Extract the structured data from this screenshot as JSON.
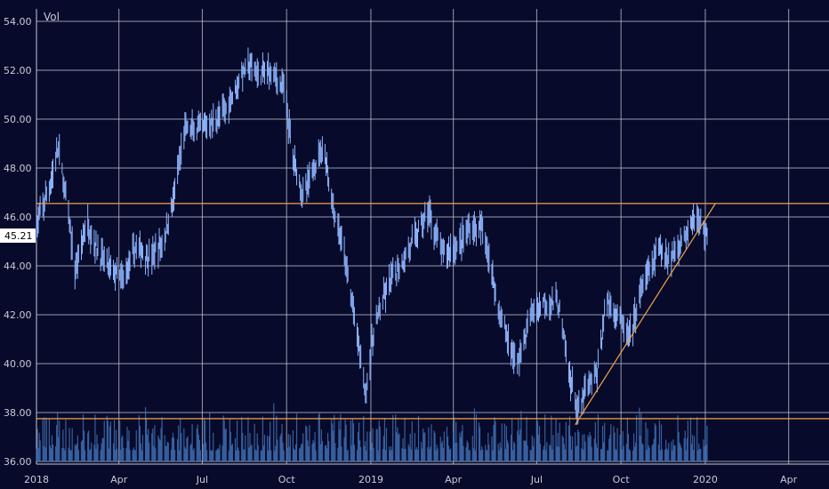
{
  "panel": {
    "indicator_label": "Vol"
  },
  "colors": {
    "background": "#070a2a",
    "grid": "#c7c9d9",
    "price_bar": "#8fb6ff",
    "volume_bar": "#3f6fb1",
    "trendline": "#f0a24a"
  },
  "last_price": {
    "label": "45.21",
    "value": 45.21
  },
  "chart_data": {
    "type": "ohlc",
    "title": "",
    "ylim": [
      36,
      54.5
    ],
    "y_ticks": [
      36,
      38,
      40,
      42,
      44,
      46,
      48,
      50,
      52,
      54
    ],
    "y_tick_labels": [
      "36.00",
      "38.00",
      "40.00",
      "42.00",
      "44.00",
      "46.00",
      "48.00",
      "50.00",
      "52.00",
      "54.00"
    ],
    "x_range": [
      "2018-01-01",
      "2020-05-15"
    ],
    "x_ticks": [
      {
        "date": "2018-01-01",
        "label": "2018"
      },
      {
        "date": "2018-04-01",
        "label": "Apr"
      },
      {
        "date": "2018-07-01",
        "label": "Jul"
      },
      {
        "date": "2018-10-01",
        "label": "Oct"
      },
      {
        "date": "2019-01-01",
        "label": "2019"
      },
      {
        "date": "2019-04-01",
        "label": "Apr"
      },
      {
        "date": "2019-07-01",
        "label": "Jul"
      },
      {
        "date": "2019-10-01",
        "label": "Oct"
      },
      {
        "date": "2020-01-01",
        "label": "2020"
      },
      {
        "date": "2020-04-01",
        "label": "Apr"
      }
    ],
    "grid": true,
    "price_path": [
      [
        "2018-01-01",
        45.6
      ],
      [
        "2018-01-15",
        47.2
      ],
      [
        "2018-01-25",
        48.8
      ],
      [
        "2018-02-05",
        46.0
      ],
      [
        "2018-02-12",
        43.8
      ],
      [
        "2018-02-25",
        45.8
      ],
      [
        "2018-03-10",
        44.5
      ],
      [
        "2018-03-25",
        43.8
      ],
      [
        "2018-04-05",
        43.4
      ],
      [
        "2018-04-20",
        44.8
      ],
      [
        "2018-05-05",
        44.3
      ],
      [
        "2018-05-20",
        45.0
      ],
      [
        "2018-06-01",
        47.0
      ],
      [
        "2018-06-12",
        49.6
      ],
      [
        "2018-06-25",
        49.5
      ],
      [
        "2018-07-10",
        49.8
      ],
      [
        "2018-07-25",
        50.3
      ],
      [
        "2018-08-10",
        51.6
      ],
      [
        "2018-08-20",
        52.2
      ],
      [
        "2018-09-01",
        51.8
      ],
      [
        "2018-09-15",
        52.0
      ],
      [
        "2018-09-28",
        51.2
      ],
      [
        "2018-10-08",
        48.5
      ],
      [
        "2018-10-20",
        46.8
      ],
      [
        "2018-11-01",
        48.2
      ],
      [
        "2018-11-10",
        49.0
      ],
      [
        "2018-11-20",
        46.5
      ],
      [
        "2018-12-01",
        44.8
      ],
      [
        "2018-12-10",
        42.8
      ],
      [
        "2018-12-20",
        40.5
      ],
      [
        "2018-12-26",
        38.8
      ],
      [
        "2019-01-05",
        41.5
      ],
      [
        "2019-01-20",
        43.2
      ],
      [
        "2019-02-05",
        44.2
      ],
      [
        "2019-02-20",
        45.3
      ],
      [
        "2019-03-05",
        46.2
      ],
      [
        "2019-03-20",
        44.5
      ],
      [
        "2019-04-05",
        44.8
      ],
      [
        "2019-04-20",
        45.6
      ],
      [
        "2019-05-05",
        45.4
      ],
      [
        "2019-05-20",
        42.3
      ],
      [
        "2019-06-01",
        40.8
      ],
      [
        "2019-06-10",
        40.0
      ],
      [
        "2019-06-25",
        42.0
      ],
      [
        "2019-07-10",
        42.6
      ],
      [
        "2019-07-25",
        42.4
      ],
      [
        "2019-08-05",
        39.7
      ],
      [
        "2019-08-15",
        38.0
      ],
      [
        "2019-08-25",
        39.0
      ],
      [
        "2019-09-05",
        39.6
      ],
      [
        "2019-09-15",
        42.6
      ],
      [
        "2019-09-28",
        42.0
      ],
      [
        "2019-10-10",
        41.0
      ],
      [
        "2019-10-25",
        43.2
      ],
      [
        "2019-11-10",
        44.6
      ],
      [
        "2019-11-25",
        44.4
      ],
      [
        "2019-12-10",
        45.3
      ],
      [
        "2019-12-20",
        46.1
      ],
      [
        "2020-01-03",
        45.2
      ]
    ],
    "volume_band": [
      36,
      38
    ],
    "horizontal_lines": [
      46.55,
      37.75
    ],
    "trendline": {
      "start": [
        "2019-08-12",
        37.5
      ],
      "end": [
        "2020-01-12",
        46.55
      ]
    }
  }
}
